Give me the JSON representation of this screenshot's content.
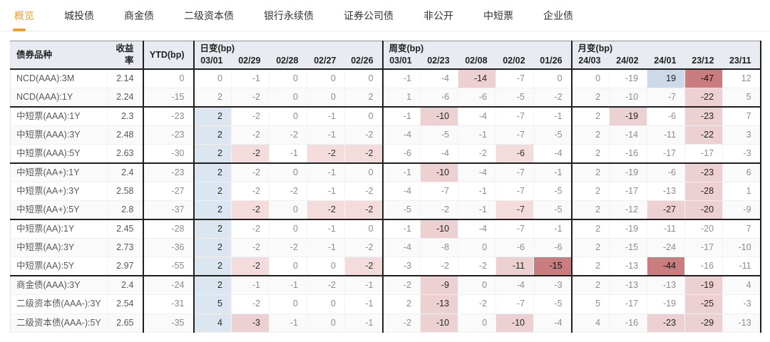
{
  "colors": {
    "accent_orange": "#f59b2c",
    "header_bg": "#e8ebf1",
    "day_col_blue": "#dce6f0",
    "positive_blue": "#ccd9e8",
    "pink_light": "#f4dcdd",
    "pink_medium": "#ecd0d2",
    "red_strong": "#c97d7f"
  },
  "tabs": [
    {
      "key": "overview",
      "label": "概览",
      "active": true
    },
    {
      "key": "chengtou-bond",
      "label": "城投债",
      "active": false
    },
    {
      "key": "bank-financial-bond",
      "label": "商金债",
      "active": false
    },
    {
      "key": "tier2-capital-bond",
      "label": "二级资本债",
      "active": false
    },
    {
      "key": "bank-perpetual-bond",
      "label": "银行永续债",
      "active": false
    },
    {
      "key": "securities-co-bond",
      "label": "证券公司债",
      "active": false
    },
    {
      "key": "private-placement",
      "label": "非公开",
      "active": false
    },
    {
      "key": "mtn-scp",
      "label": "中短票",
      "active": false
    },
    {
      "key": "enterprise-bond",
      "label": "企业债",
      "active": false
    }
  ],
  "table": {
    "headers": {
      "bond": "债券品种",
      "yield": "收益率",
      "ytd": "YTD(bp)",
      "groups": [
        {
          "label": "日变(bp)",
          "dates": [
            "03/01",
            "02/29",
            "02/28",
            "02/27",
            "02/26"
          ]
        },
        {
          "label": "周变(bp)",
          "dates": [
            "03/01",
            "02/23",
            "02/08",
            "02/02",
            "01/26"
          ]
        },
        {
          "label": "月变(bp)",
          "dates": [
            "24/03",
            "24/02",
            "24/01",
            "23/12",
            "23/11"
          ]
        }
      ]
    },
    "highlight_legend": {
      "bc": "day-column-blue",
      "bs": "positive-blue",
      "p1": "pink-light",
      "p2": "pink-medium",
      "p3": "red-strong"
    },
    "rows": [
      {
        "bond": "NCD(AAA):3M",
        "yield": "2.14",
        "ytd": "0",
        "section_end": false,
        "cells": [
          [
            "0",
            ""
          ],
          [
            "-1",
            ""
          ],
          [
            "0",
            ""
          ],
          [
            "0",
            ""
          ],
          [
            "0",
            ""
          ],
          [
            "-1",
            ""
          ],
          [
            "-4",
            ""
          ],
          [
            "-14",
            "p2"
          ],
          [
            "-7",
            ""
          ],
          [
            "0",
            ""
          ],
          [
            "0",
            ""
          ],
          [
            "-19",
            ""
          ],
          [
            "19",
            "bs"
          ],
          [
            "-47",
            "p3"
          ],
          [
            "12",
            ""
          ]
        ]
      },
      {
        "bond": "NCD(AAA):1Y",
        "yield": "2.24",
        "ytd": "-15",
        "section_end": true,
        "cells": [
          [
            "2",
            ""
          ],
          [
            "-2",
            ""
          ],
          [
            "0",
            ""
          ],
          [
            "0",
            ""
          ],
          [
            "2",
            ""
          ],
          [
            "1",
            ""
          ],
          [
            "-6",
            ""
          ],
          [
            "-6",
            ""
          ],
          [
            "-5",
            ""
          ],
          [
            "-2",
            ""
          ],
          [
            "2",
            ""
          ],
          [
            "-10",
            ""
          ],
          [
            "-7",
            ""
          ],
          [
            "-22",
            "p2"
          ],
          [
            "5",
            ""
          ]
        ]
      },
      {
        "bond": "中短票(AAA):1Y",
        "yield": "2.3",
        "ytd": "-23",
        "section_end": false,
        "cells": [
          [
            "2",
            "bc"
          ],
          [
            "-2",
            ""
          ],
          [
            "0",
            ""
          ],
          [
            "-1",
            ""
          ],
          [
            "0",
            ""
          ],
          [
            "-1",
            ""
          ],
          [
            "-10",
            "p2"
          ],
          [
            "-4",
            ""
          ],
          [
            "-7",
            ""
          ],
          [
            "-1",
            ""
          ],
          [
            "2",
            ""
          ],
          [
            "-19",
            "p2"
          ],
          [
            "-6",
            ""
          ],
          [
            "-23",
            "p2"
          ],
          [
            "7",
            ""
          ]
        ]
      },
      {
        "bond": "中短票(AAA):3Y",
        "yield": "2.48",
        "ytd": "-23",
        "section_end": false,
        "cells": [
          [
            "2",
            "bc"
          ],
          [
            "-2",
            ""
          ],
          [
            "-2",
            ""
          ],
          [
            "-1",
            ""
          ],
          [
            "-2",
            ""
          ],
          [
            "-4",
            ""
          ],
          [
            "-5",
            ""
          ],
          [
            "-1",
            ""
          ],
          [
            "-7",
            ""
          ],
          [
            "-5",
            ""
          ],
          [
            "2",
            ""
          ],
          [
            "-14",
            ""
          ],
          [
            "-11",
            ""
          ],
          [
            "-22",
            "p2"
          ],
          [
            "3",
            ""
          ]
        ]
      },
      {
        "bond": "中短票(AAA):5Y",
        "yield": "2.63",
        "ytd": "-30",
        "section_end": true,
        "cells": [
          [
            "2",
            "bc"
          ],
          [
            "-2",
            "p1"
          ],
          [
            "-1",
            ""
          ],
          [
            "-2",
            "p1"
          ],
          [
            "-2",
            "p1"
          ],
          [
            "-6",
            ""
          ],
          [
            "-4",
            ""
          ],
          [
            "-2",
            ""
          ],
          [
            "-6",
            "p1"
          ],
          [
            "-4",
            ""
          ],
          [
            "2",
            ""
          ],
          [
            "-16",
            ""
          ],
          [
            "-17",
            ""
          ],
          [
            "-17",
            ""
          ],
          [
            "-3",
            ""
          ]
        ]
      },
      {
        "bond": "中短票(AA+):1Y",
        "yield": "2.4",
        "ytd": "-23",
        "section_end": false,
        "cells": [
          [
            "2",
            "bc"
          ],
          [
            "-2",
            ""
          ],
          [
            "0",
            ""
          ],
          [
            "-1",
            ""
          ],
          [
            "0",
            ""
          ],
          [
            "-1",
            ""
          ],
          [
            "-10",
            "p2"
          ],
          [
            "-4",
            ""
          ],
          [
            "-7",
            ""
          ],
          [
            "-1",
            ""
          ],
          [
            "2",
            ""
          ],
          [
            "-19",
            ""
          ],
          [
            "-6",
            ""
          ],
          [
            "-23",
            "p2"
          ],
          [
            "6",
            ""
          ]
        ]
      },
      {
        "bond": "中短票(AA+):3Y",
        "yield": "2.58",
        "ytd": "-27",
        "section_end": false,
        "cells": [
          [
            "2",
            "bc"
          ],
          [
            "-2",
            ""
          ],
          [
            "-2",
            ""
          ],
          [
            "-1",
            ""
          ],
          [
            "-2",
            ""
          ],
          [
            "-4",
            ""
          ],
          [
            "-7",
            ""
          ],
          [
            "-1",
            ""
          ],
          [
            "-7",
            ""
          ],
          [
            "-5",
            ""
          ],
          [
            "2",
            ""
          ],
          [
            "-17",
            ""
          ],
          [
            "-13",
            ""
          ],
          [
            "-28",
            "p2"
          ],
          [
            "1",
            ""
          ]
        ]
      },
      {
        "bond": "中短票(AA+):5Y",
        "yield": "2.8",
        "ytd": "-37",
        "section_end": true,
        "cells": [
          [
            "2",
            "bc"
          ],
          [
            "-2",
            "p1"
          ],
          [
            "0",
            ""
          ],
          [
            "-2",
            "p1"
          ],
          [
            "-2",
            "p1"
          ],
          [
            "-5",
            ""
          ],
          [
            "-2",
            ""
          ],
          [
            "-1",
            ""
          ],
          [
            "-7",
            "p1"
          ],
          [
            "-5",
            ""
          ],
          [
            "2",
            ""
          ],
          [
            "-12",
            ""
          ],
          [
            "-27",
            "p2"
          ],
          [
            "-20",
            "p2"
          ],
          [
            "-9",
            ""
          ]
        ]
      },
      {
        "bond": "中短票(AA):1Y",
        "yield": "2.45",
        "ytd": "-28",
        "section_end": false,
        "cells": [
          [
            "2",
            "bc"
          ],
          [
            "-2",
            ""
          ],
          [
            "0",
            ""
          ],
          [
            "-1",
            ""
          ],
          [
            "0",
            ""
          ],
          [
            "-1",
            ""
          ],
          [
            "-10",
            "p2"
          ],
          [
            "-4",
            ""
          ],
          [
            "-7",
            ""
          ],
          [
            "-1",
            ""
          ],
          [
            "2",
            ""
          ],
          [
            "-19",
            ""
          ],
          [
            "-11",
            ""
          ],
          [
            "-20",
            ""
          ],
          [
            "7",
            ""
          ]
        ]
      },
      {
        "bond": "中短票(AA):3Y",
        "yield": "2.73",
        "ytd": "-36",
        "section_end": false,
        "cells": [
          [
            "2",
            "bc"
          ],
          [
            "-2",
            ""
          ],
          [
            "-2",
            ""
          ],
          [
            "-1",
            ""
          ],
          [
            "-2",
            ""
          ],
          [
            "-4",
            ""
          ],
          [
            "-8",
            ""
          ],
          [
            "0",
            ""
          ],
          [
            "-6",
            ""
          ],
          [
            "-6",
            ""
          ],
          [
            "2",
            ""
          ],
          [
            "-15",
            ""
          ],
          [
            "-24",
            ""
          ],
          [
            "-17",
            ""
          ],
          [
            "-10",
            ""
          ]
        ]
      },
      {
        "bond": "中短票(AA):5Y",
        "yield": "2.97",
        "ytd": "-55",
        "section_end": true,
        "cells": [
          [
            "2",
            "bc"
          ],
          [
            "-2",
            "p1"
          ],
          [
            "0",
            ""
          ],
          [
            "0",
            ""
          ],
          [
            "-2",
            "p1"
          ],
          [
            "-3",
            ""
          ],
          [
            "-2",
            ""
          ],
          [
            "-2",
            ""
          ],
          [
            "-11",
            "p2"
          ],
          [
            "-15",
            "p3"
          ],
          [
            "2",
            ""
          ],
          [
            "-13",
            ""
          ],
          [
            "-44",
            "p3"
          ],
          [
            "-16",
            ""
          ],
          [
            "-11",
            ""
          ]
        ]
      },
      {
        "bond": "商金债(AAA):3Y",
        "yield": "2.4",
        "ytd": "-24",
        "section_end": false,
        "cells": [
          [
            "2",
            "bc"
          ],
          [
            "-1",
            ""
          ],
          [
            "-1",
            ""
          ],
          [
            "-2",
            ""
          ],
          [
            "-1",
            ""
          ],
          [
            "-2",
            ""
          ],
          [
            "-9",
            "p2"
          ],
          [
            "0",
            ""
          ],
          [
            "-4",
            ""
          ],
          [
            "-3",
            ""
          ],
          [
            "2",
            ""
          ],
          [
            "-13",
            ""
          ],
          [
            "-13",
            ""
          ],
          [
            "-19",
            "p2"
          ],
          [
            "4",
            ""
          ]
        ]
      },
      {
        "bond": "二级资本债(AAA-):3Y",
        "yield": "2.54",
        "ytd": "-31",
        "section_end": false,
        "cells": [
          [
            "5",
            "bc"
          ],
          [
            "-2",
            ""
          ],
          [
            "0",
            ""
          ],
          [
            "0",
            ""
          ],
          [
            "-1",
            ""
          ],
          [
            "2",
            ""
          ],
          [
            "-13",
            "p2"
          ],
          [
            "-2",
            ""
          ],
          [
            "-7",
            ""
          ],
          [
            "-5",
            ""
          ],
          [
            "5",
            ""
          ],
          [
            "-17",
            ""
          ],
          [
            "-19",
            ""
          ],
          [
            "-25",
            "p2"
          ],
          [
            "-3",
            ""
          ]
        ]
      },
      {
        "bond": "二级资本债(AAA-):5Y",
        "yield": "2.65",
        "ytd": "-35",
        "section_end": false,
        "cells": [
          [
            "4",
            "bc"
          ],
          [
            "-3",
            "p2"
          ],
          [
            "-1",
            ""
          ],
          [
            "0",
            ""
          ],
          [
            "-1",
            ""
          ],
          [
            "-2",
            ""
          ],
          [
            "-10",
            "p2"
          ],
          [
            "0",
            ""
          ],
          [
            "-10",
            "p2"
          ],
          [
            "-4",
            ""
          ],
          [
            "4",
            ""
          ],
          [
            "-16",
            ""
          ],
          [
            "-23",
            "p2"
          ],
          [
            "-29",
            "p2"
          ],
          [
            "-13",
            ""
          ]
        ]
      }
    ]
  }
}
